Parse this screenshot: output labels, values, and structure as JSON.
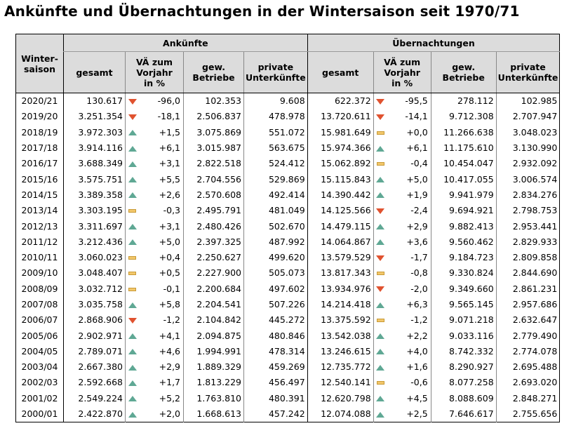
{
  "title": "Ankünfte und Übernachtungen in der Wintersaison seit 1970/71",
  "header": {
    "season": "Winter-saison",
    "season_l1": "Winter-",
    "season_l2": "saison",
    "group_arrivals": "Ankünfte",
    "group_nights": "Übernachtungen",
    "total": "gesamt",
    "change_l1": "VÄ zum",
    "change_l2": "Vorjahr",
    "change_l3": "in %",
    "commercial_l1": "gew.",
    "commercial_l2": "Betriebe",
    "private_l1": "private",
    "private_l2": "Unterkünfte"
  },
  "rows": [
    {
      "season": "2020/21",
      "a_total": "130.617",
      "a_dir": "down",
      "a_chg": "-96,0",
      "a_com": "102.353",
      "a_priv": "9.608",
      "n_total": "622.372",
      "n_dir": "down",
      "n_chg": "-95,5",
      "n_com": "278.112",
      "n_priv": "102.985"
    },
    {
      "season": "2019/20",
      "a_total": "3.251.354",
      "a_dir": "down",
      "a_chg": "-18,1",
      "a_com": "2.506.837",
      "a_priv": "478.978",
      "n_total": "13.720.611",
      "n_dir": "down",
      "n_chg": "-14,1",
      "n_com": "9.712.308",
      "n_priv": "2.707.947"
    },
    {
      "season": "2018/19",
      "a_total": "3.972.303",
      "a_dir": "up",
      "a_chg": "+1,5",
      "a_com": "3.075.869",
      "a_priv": "551.072",
      "n_total": "15.981.649",
      "n_dir": "flat",
      "n_chg": "+0,0",
      "n_com": "11.266.638",
      "n_priv": "3.048.023"
    },
    {
      "season": "2017/18",
      "a_total": "3.914.116",
      "a_dir": "up",
      "a_chg": "+6,1",
      "a_com": "3.015.987",
      "a_priv": "563.675",
      "n_total": "15.974.366",
      "n_dir": "up",
      "n_chg": "+6,1",
      "n_com": "11.175.610",
      "n_priv": "3.130.990"
    },
    {
      "season": "2016/17",
      "a_total": "3.688.349",
      "a_dir": "up",
      "a_chg": "+3,1",
      "a_com": "2.822.518",
      "a_priv": "524.412",
      "n_total": "15.062.892",
      "n_dir": "flat",
      "n_chg": "-0,4",
      "n_com": "10.454.047",
      "n_priv": "2.932.092"
    },
    {
      "season": "2015/16",
      "a_total": "3.575.751",
      "a_dir": "up",
      "a_chg": "+5,5",
      "a_com": "2.704.556",
      "a_priv": "529.869",
      "n_total": "15.115.843",
      "n_dir": "up",
      "n_chg": "+5,0",
      "n_com": "10.417.055",
      "n_priv": "3.006.574"
    },
    {
      "season": "2014/15",
      "a_total": "3.389.358",
      "a_dir": "up",
      "a_chg": "+2,6",
      "a_com": "2.570.608",
      "a_priv": "492.414",
      "n_total": "14.390.442",
      "n_dir": "up",
      "n_chg": "+1,9",
      "n_com": "9.941.979",
      "n_priv": "2.834.276"
    },
    {
      "season": "2013/14",
      "a_total": "3.303.195",
      "a_dir": "flat",
      "a_chg": "-0,3",
      "a_com": "2.495.791",
      "a_priv": "481.049",
      "n_total": "14.125.566",
      "n_dir": "down",
      "n_chg": "-2,4",
      "n_com": "9.694.921",
      "n_priv": "2.798.753"
    },
    {
      "season": "2012/13",
      "a_total": "3.311.697",
      "a_dir": "up",
      "a_chg": "+3,1",
      "a_com": "2.480.426",
      "a_priv": "502.670",
      "n_total": "14.479.115",
      "n_dir": "up",
      "n_chg": "+2,9",
      "n_com": "9.882.413",
      "n_priv": "2.953.441"
    },
    {
      "season": "2011/12",
      "a_total": "3.212.436",
      "a_dir": "up",
      "a_chg": "+5,0",
      "a_com": "2.397.325",
      "a_priv": "487.992",
      "n_total": "14.064.867",
      "n_dir": "up",
      "n_chg": "+3,6",
      "n_com": "9.560.462",
      "n_priv": "2.829.933"
    },
    {
      "season": "2010/11",
      "a_total": "3.060.023",
      "a_dir": "flat",
      "a_chg": "+0,4",
      "a_com": "2.250.627",
      "a_priv": "499.620",
      "n_total": "13.579.529",
      "n_dir": "down",
      "n_chg": "-1,7",
      "n_com": "9.184.723",
      "n_priv": "2.809.858"
    },
    {
      "season": "2009/10",
      "a_total": "3.048.407",
      "a_dir": "flat",
      "a_chg": "+0,5",
      "a_com": "2.227.900",
      "a_priv": "505.073",
      "n_total": "13.817.343",
      "n_dir": "flat",
      "n_chg": "-0,8",
      "n_com": "9.330.824",
      "n_priv": "2.844.690"
    },
    {
      "season": "2008/09",
      "a_total": "3.032.712",
      "a_dir": "flat",
      "a_chg": "-0,1",
      "a_com": "2.200.684",
      "a_priv": "497.602",
      "n_total": "13.934.976",
      "n_dir": "down",
      "n_chg": "-2,0",
      "n_com": "9.349.660",
      "n_priv": "2.861.231"
    },
    {
      "season": "2007/08",
      "a_total": "3.035.758",
      "a_dir": "up",
      "a_chg": "+5,8",
      "a_com": "2.204.541",
      "a_priv": "507.226",
      "n_total": "14.214.418",
      "n_dir": "up",
      "n_chg": "+6,3",
      "n_com": "9.565.145",
      "n_priv": "2.957.686"
    },
    {
      "season": "2006/07",
      "a_total": "2.868.906",
      "a_dir": "down",
      "a_chg": "-1,2",
      "a_com": "2.104.842",
      "a_priv": "445.272",
      "n_total": "13.375.592",
      "n_dir": "flat",
      "n_chg": "-1,2",
      "n_com": "9.071.218",
      "n_priv": "2.632.647"
    },
    {
      "season": "2005/06",
      "a_total": "2.902.971",
      "a_dir": "up",
      "a_chg": "+4,1",
      "a_com": "2.094.875",
      "a_priv": "480.846",
      "n_total": "13.542.038",
      "n_dir": "up",
      "n_chg": "+2,2",
      "n_com": "9.033.116",
      "n_priv": "2.779.490"
    },
    {
      "season": "2004/05",
      "a_total": "2.789.071",
      "a_dir": "up",
      "a_chg": "+4,6",
      "a_com": "1.994.991",
      "a_priv": "478.314",
      "n_total": "13.246.615",
      "n_dir": "up",
      "n_chg": "+4,0",
      "n_com": "8.742.332",
      "n_priv": "2.774.078"
    },
    {
      "season": "2003/04",
      "a_total": "2.667.380",
      "a_dir": "up",
      "a_chg": "+2,9",
      "a_com": "1.889.329",
      "a_priv": "459.269",
      "n_total": "12.735.772",
      "n_dir": "up",
      "n_chg": "+1,6",
      "n_com": "8.290.927",
      "n_priv": "2.695.488"
    },
    {
      "season": "2002/03",
      "a_total": "2.592.668",
      "a_dir": "up",
      "a_chg": "+1,7",
      "a_com": "1.813.229",
      "a_priv": "456.497",
      "n_total": "12.540.141",
      "n_dir": "flat",
      "n_chg": "-0,6",
      "n_com": "8.077.258",
      "n_priv": "2.693.020"
    },
    {
      "season": "2001/02",
      "a_total": "2.549.224",
      "a_dir": "up",
      "a_chg": "+5,2",
      "a_com": "1.763.810",
      "a_priv": "480.391",
      "n_total": "12.620.798",
      "n_dir": "up",
      "n_chg": "+4,5",
      "n_com": "8.088.609",
      "n_priv": "2.848.271"
    },
    {
      "season": "2000/01",
      "a_total": "2.422.870",
      "a_dir": "up",
      "a_chg": "+2,0",
      "a_com": "1.668.613",
      "a_priv": "457.242",
      "n_total": "12.074.088",
      "n_dir": "up",
      "n_chg": "+2,5",
      "n_com": "7.646.617",
      "n_priv": "2.755.656"
    }
  ],
  "colors": {
    "up": "#5fa894",
    "down": "#e0522f",
    "flat": "#f2c76b",
    "header_bg": "#dcdcdc"
  }
}
